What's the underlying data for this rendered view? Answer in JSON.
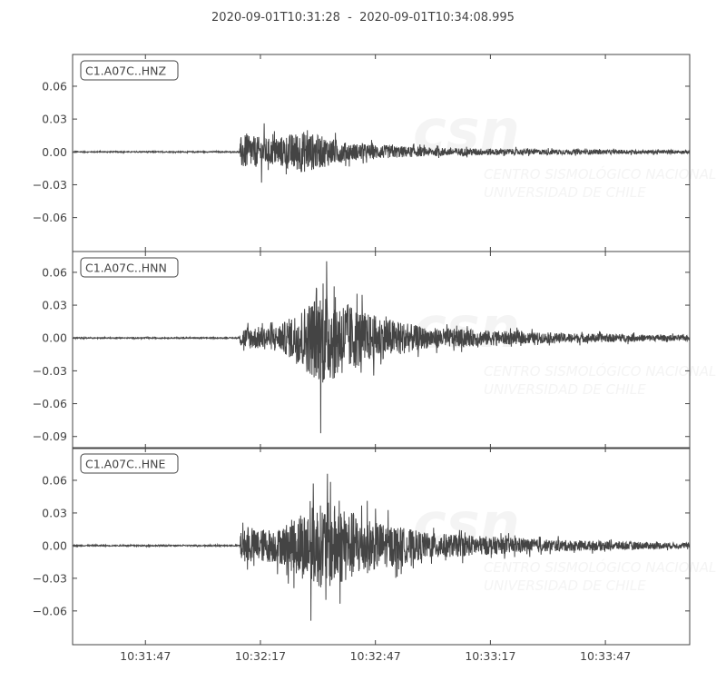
{
  "chart_data": {
    "type": "line",
    "title": "2020-09-01T10:31:28  -  2020-09-01T10:34:08.995",
    "x_range": [
      "10:31:28",
      "10:34:08.995"
    ],
    "x_ticks": [
      "10:31:47",
      "10:32:17",
      "10:32:47",
      "10:33:17",
      "10:33:47"
    ],
    "grid": false,
    "line_color": "#444444",
    "watermark": {
      "logo": "csn",
      "line1": "CENTRO SISMOLÓGICO NACIONAL",
      "line2": "UNIVERSIDAD DE CHILE"
    },
    "traces": [
      {
        "label": "C1.A07C..HNZ",
        "ylim": [
          -0.091,
          0.089
        ],
        "y_ticks": [
          "0.06",
          "0.03",
          "0.00",
          "−0.03",
          "−0.06"
        ],
        "y_tick_values": [
          0.06,
          0.03,
          0.0,
          -0.03,
          -0.06
        ],
        "onset": "10:32:12",
        "max": 0.026,
        "min": -0.028,
        "envelope": [
          [
            "10:31:28",
            0.0006
          ],
          [
            "10:32:11.5",
            0.0006
          ],
          [
            "10:32:12",
            0.02
          ],
          [
            "10:32:20",
            0.015
          ],
          [
            "10:32:28",
            0.024
          ],
          [
            "10:32:40",
            0.01
          ],
          [
            "10:33:00",
            0.005
          ],
          [
            "10:33:30",
            0.003
          ],
          [
            "10:34:09",
            0.0018
          ]
        ]
      },
      {
        "label": "C1.A07C..HNN",
        "ylim": [
          -0.101,
          0.079
        ],
        "y_ticks": [
          "0.06",
          "0.03",
          "0.00",
          "−0.03",
          "−0.06",
          "−0.09"
        ],
        "y_tick_values": [
          0.06,
          0.03,
          0.0,
          -0.03,
          -0.06,
          -0.09
        ],
        "onset": "10:32:12",
        "max": 0.07,
        "min": -0.087,
        "envelope": [
          [
            "10:31:28",
            0.0006
          ],
          [
            "10:32:11.5",
            0.0006
          ],
          [
            "10:32:12",
            0.012
          ],
          [
            "10:32:22",
            0.014
          ],
          [
            "10:32:28",
            0.035
          ],
          [
            "10:32:33",
            0.055
          ],
          [
            "10:32:45",
            0.028
          ],
          [
            "10:33:00",
            0.012
          ],
          [
            "10:33:30",
            0.006
          ],
          [
            "10:34:09",
            0.003
          ]
        ]
      },
      {
        "label": "C1.A07C..HNE",
        "ylim": [
          -0.091,
          0.09
        ],
        "y_ticks": [
          "0.06",
          "0.03",
          "0.00",
          "−0.03",
          "−0.06"
        ],
        "y_tick_values": [
          0.06,
          0.03,
          0.0,
          -0.03,
          -0.06
        ],
        "onset": "10:32:12",
        "max": 0.066,
        "min": -0.069,
        "envelope": [
          [
            "10:31:28",
            0.0007
          ],
          [
            "10:32:11.5",
            0.0007
          ],
          [
            "10:32:12",
            0.018
          ],
          [
            "10:32:22",
            0.02
          ],
          [
            "10:32:30",
            0.045
          ],
          [
            "10:32:35",
            0.05
          ],
          [
            "10:32:47",
            0.028
          ],
          [
            "10:33:00",
            0.015
          ],
          [
            "10:33:30",
            0.007
          ],
          [
            "10:34:09",
            0.003
          ]
        ]
      }
    ]
  }
}
